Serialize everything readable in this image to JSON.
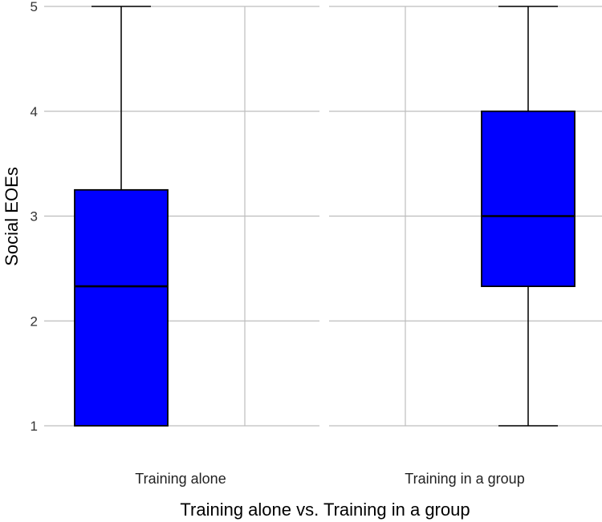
{
  "chart_data": {
    "type": "box",
    "title": "",
    "xlabel": "Training alone vs. Training in a group",
    "ylabel": "Social EOEs",
    "ylim": [
      1,
      5
    ],
    "yticks": [
      1,
      2,
      3,
      4,
      5
    ],
    "grid": true,
    "categories": [
      "Training alone",
      "Training in a group"
    ],
    "boxes": [
      {
        "category": "Training alone",
        "min": 1,
        "q1": 1,
        "median": 2.33,
        "q3": 3.25,
        "max": 5
      },
      {
        "category": "Training in a group",
        "min": 1,
        "q1": 2.33,
        "median": 3.0,
        "q3": 4.0,
        "max": 5
      }
    ],
    "colors": {
      "box_fill": "#0000ff",
      "box_stroke": "#000000",
      "grid": "#bdbdbd",
      "background": "#ffffff"
    }
  }
}
